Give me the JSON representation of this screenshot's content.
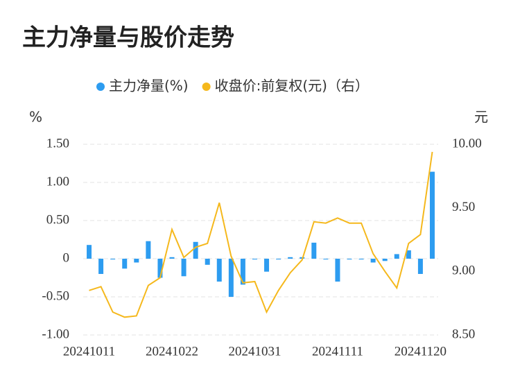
{
  "chart_data": {
    "type": "bar_line",
    "title": "主力净量与股价走势",
    "y_unit": "%",
    "y2_unit": "元",
    "categories": [
      "20241011",
      null,
      null,
      null,
      null,
      null,
      null,
      "20241022",
      null,
      null,
      null,
      null,
      null,
      null,
      "20241031",
      null,
      null,
      null,
      null,
      null,
      null,
      "20241111",
      null,
      null,
      null,
      null,
      null,
      null,
      "20241120",
      null
    ],
    "series": [
      {
        "name": "主力净量(%)",
        "color": "#2d9cf0",
        "type": "bar",
        "values": [
          0.18,
          -0.2,
          -0.01,
          -0.13,
          -0.05,
          0.23,
          -0.25,
          0.02,
          -0.23,
          0.22,
          -0.08,
          -0.3,
          -0.5,
          -0.34,
          -0.01,
          -0.17,
          -0.01,
          0.02,
          0.02,
          0.21,
          -0.01,
          -0.3,
          -0.01,
          -0.01,
          -0.05,
          -0.03,
          0.06,
          0.11,
          -0.2,
          1.14
        ]
      },
      {
        "name": "收盘价:前复权(元)（右）",
        "color": "#f5b81c",
        "type": "line",
        "axis": "y2",
        "values": [
          8.85,
          8.88,
          8.68,
          8.64,
          8.65,
          8.89,
          8.95,
          9.33,
          9.11,
          9.19,
          9.22,
          9.54,
          9.12,
          8.91,
          8.92,
          8.68,
          8.85,
          8.99,
          9.09,
          9.39,
          9.38,
          9.42,
          9.38,
          9.38,
          9.14,
          9.0,
          8.87,
          9.22,
          9.29,
          9.94
        ]
      }
    ],
    "ylim": [
      -1,
      1.5
    ],
    "yticks": [
      {
        "value": 1.5,
        "label": "1.50"
      },
      {
        "value": 1,
        "label": "1.00"
      },
      {
        "value": 0.5,
        "label": "0.50"
      },
      0,
      {
        "value": -0.5,
        "label": "-0.50"
      },
      {
        "value": -1,
        "label": "-1.00"
      }
    ],
    "y2lim": [
      8.5,
      10
    ],
    "y2ticks": [
      {
        "value": 10,
        "label": "10.00"
      },
      {
        "value": 9.5,
        "label": "9.50"
      },
      {
        "value": 9,
        "label": "9.00"
      },
      {
        "value": 8.5,
        "label": "8.50"
      }
    ],
    "grid": true,
    "legend": "top"
  }
}
